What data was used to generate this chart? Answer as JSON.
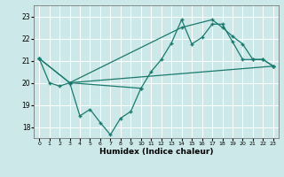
{
  "xlabel": "Humidex (Indice chaleur)",
  "background_color": "#cce8e8",
  "grid_color": "#ffffff",
  "line_color": "#1a7a6e",
  "xlim": [
    -0.5,
    23.5
  ],
  "ylim": [
    17.5,
    23.5
  ],
  "yticks": [
    18,
    19,
    20,
    21,
    22,
    23
  ],
  "xticks": [
    0,
    1,
    2,
    3,
    4,
    5,
    6,
    7,
    8,
    9,
    10,
    11,
    12,
    13,
    14,
    15,
    16,
    17,
    18,
    19,
    20,
    21,
    22,
    23
  ],
  "line1_x": [
    0,
    1,
    2,
    3,
    10,
    11,
    12,
    13,
    14,
    15,
    16,
    17,
    18,
    19,
    20,
    21,
    22,
    23
  ],
  "line1_y": [
    21.1,
    20.0,
    19.85,
    20.0,
    19.75,
    20.5,
    21.05,
    21.8,
    22.85,
    21.75,
    22.05,
    22.65,
    22.65,
    21.85,
    21.05,
    21.05,
    21.05,
    20.75
  ],
  "line2_x": [
    0,
    3,
    23
  ],
  "line2_y": [
    21.1,
    20.0,
    20.75
  ],
  "line3_x": [
    0,
    3,
    14,
    17,
    18,
    19,
    20,
    21,
    22,
    23
  ],
  "line3_y": [
    21.1,
    20.0,
    22.5,
    22.85,
    22.5,
    22.1,
    21.75,
    21.05,
    21.05,
    20.75
  ],
  "line4_x": [
    3,
    4,
    5,
    6,
    7,
    8,
    9,
    10
  ],
  "line4_y": [
    20.0,
    18.5,
    18.8,
    18.2,
    17.65,
    18.4,
    18.7,
    19.75
  ]
}
